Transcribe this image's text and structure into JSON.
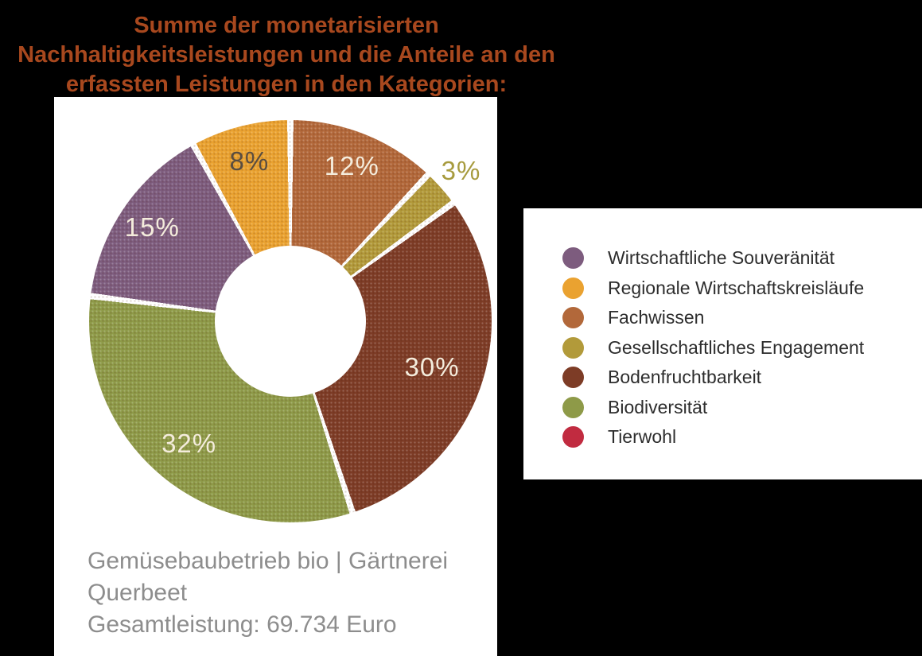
{
  "canvas": {
    "background_color": "#000000",
    "panel_color": "#ffffff"
  },
  "chart_data": {
    "type": "pie",
    "variant": "donut",
    "title": "Summe der monetarisierten Nachhaltigkeitsleistungen und die Anteile an den erfassten Leistungen in den Kategorien:",
    "title_lines": [
      "Summe der monetarisierten",
      "Nachhaltigkeitsleistungen und die Anteile an den",
      "erfassten Leistungen in den Kategorien:"
    ],
    "title_color": "#a8481e",
    "segments": [
      {
        "label": "Fachwissen",
        "pct": 12,
        "display": "12%",
        "color": "#b2683a",
        "label_color": "#f4ecdc",
        "label_radius": 0.83
      },
      {
        "label": "Gesellschaftliches Engagement",
        "pct": 3,
        "display": "3%",
        "color": "#b29a3a",
        "label_color": "#a79b3e",
        "label_radius": 1.13
      },
      {
        "label": "Bodenfruchtbarkeit",
        "pct": 30,
        "display": "30%",
        "color": "#7d3c26",
        "label_color": "#f4ecdc",
        "label_radius": 0.74
      },
      {
        "label": "Biodiversität",
        "pct": 32,
        "display": "32%",
        "color": "#8e9a48",
        "label_color": "#f4ecdc",
        "label_radius": 0.79
      },
      {
        "label": "Wirtschaftliche Souveränität",
        "pct": 15,
        "display": "15%",
        "color": "#7d5c7e",
        "label_color": "#f4ecdc",
        "label_radius": 0.83
      },
      {
        "label": "Regionale Wirtschaftskreisläufe",
        "pct": 8,
        "display": "8%",
        "color": "#eaa230",
        "label_color": "#5a4d40",
        "label_radius": 0.82
      },
      {
        "label": "Tierwohl",
        "pct": 0,
        "display": "",
        "color": "#c12b40",
        "label_color": "",
        "label_radius": 0
      }
    ],
    "legend": {
      "position": "right",
      "items": [
        {
          "label": "Wirtschaftliche Souveränität",
          "color": "#7d5c7e"
        },
        {
          "label": "Regionale Wirtschaftskreisläufe",
          "color": "#eaa230"
        },
        {
          "label": "Fachwissen",
          "color": "#b2683a"
        },
        {
          "label": "Gesellschaftliches Engagement",
          "color": "#b29a3a"
        },
        {
          "label": "Bodenfruchtbarkeit",
          "color": "#7d3c26"
        },
        {
          "label": "Biodiversität",
          "color": "#8e9a48"
        },
        {
          "label": "Tierwohl",
          "color": "#c12b40"
        }
      ]
    },
    "footer_lines": [
      "Gemüsebaubetrieb bio | Gärtnerei",
      "Querbeet",
      "Gesamtleistung: 69.734 Euro"
    ],
    "footer": "Gemüsebaubetrieb bio | Gärtnerei Querbeet — Gesamtleistung: 69.734 Euro",
    "total_value": "69.734 Euro",
    "footer_color": "#8d8d8d"
  }
}
